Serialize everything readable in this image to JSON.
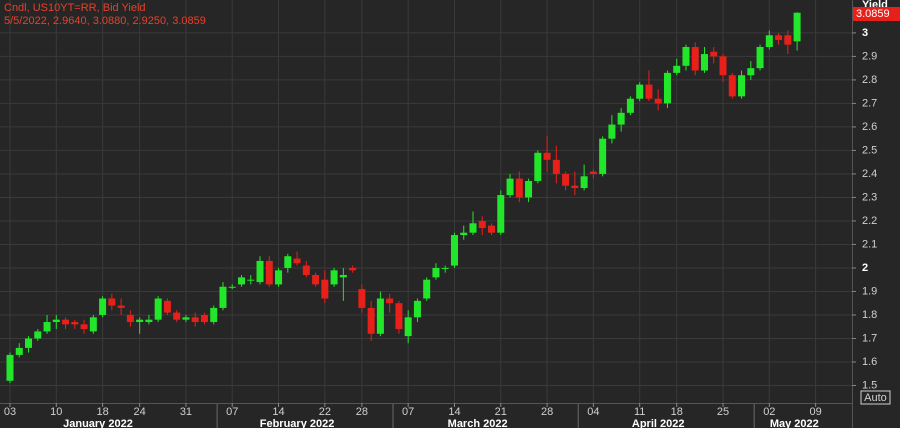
{
  "chart_data": {
    "type": "candlestick",
    "title": "Cndl, US10YT=RR, Bid Yield",
    "subtitle": "5/5/2022, 2.9640, 3.0880, 2.9250, 3.0859",
    "y_label": "Yield",
    "button": "Auto",
    "month_labels": [
      "January 2022",
      "February 2022",
      "March 2022",
      "April 2022",
      "May 2022"
    ],
    "categories": [
      "03",
      null,
      null,
      null,
      null,
      "10",
      null,
      null,
      null,
      null,
      "18",
      null,
      null,
      null,
      "24",
      null,
      null,
      null,
      null,
      "31",
      null,
      null,
      null,
      null,
      "07",
      null,
      null,
      null,
      null,
      "14",
      null,
      null,
      null,
      null,
      "22",
      null,
      null,
      null,
      "28",
      null,
      null,
      null,
      null,
      "07",
      null,
      null,
      null,
      null,
      "14",
      null,
      null,
      null,
      null,
      "21",
      null,
      null,
      null,
      null,
      "28",
      null,
      null,
      null,
      null,
      "04",
      null,
      null,
      null,
      null,
      "11",
      null,
      null,
      null,
      "18",
      null,
      null,
      null,
      null,
      "25",
      null,
      null,
      null,
      null,
      "02",
      null,
      null,
      null,
      null,
      "09",
      null,
      null,
      null
    ],
    "open": [
      1.52,
      1.63,
      1.66,
      1.7,
      1.73,
      1.77,
      1.78,
      1.77,
      1.76,
      1.73,
      1.8,
      1.87,
      1.84,
      1.8,
      1.77,
      1.77,
      1.78,
      1.86,
      1.81,
      1.78,
      1.79,
      1.8,
      1.77,
      1.83,
      1.92,
      1.93,
      1.95,
      1.94,
      2.03,
      1.93,
      2.0,
      2.04,
      2.01,
      1.97,
      1.95,
      1.93,
      1.96,
      2.0,
      1.91,
      1.83,
      1.72,
      1.87,
      1.85,
      1.71,
      1.79,
      1.87,
      1.96,
      2.0,
      2.01,
      2.14,
      2.15,
      2.2,
      2.18,
      2.15,
      2.31,
      2.38,
      2.3,
      2.37,
      2.49,
      2.46,
      2.4,
      2.35,
      2.34,
      2.41,
      2.4,
      2.55,
      2.61,
      2.66,
      2.72,
      2.78,
      2.72,
      2.7,
      2.83,
      2.86,
      2.94,
      2.84,
      2.92,
      2.9,
      2.82,
      2.73,
      2.82,
      2.85,
      2.94,
      2.99,
      2.99,
      2.964,
      null,
      null,
      null,
      null,
      null
    ],
    "high": [
      1.64,
      1.68,
      1.71,
      1.74,
      1.8,
      1.8,
      1.79,
      1.78,
      1.78,
      1.8,
      1.88,
      1.89,
      1.87,
      1.82,
      1.79,
      1.8,
      1.88,
      1.87,
      1.82,
      1.8,
      1.81,
      1.81,
      1.84,
      1.94,
      1.93,
      1.97,
      1.97,
      2.05,
      2.05,
      2.0,
      2.06,
      2.07,
      2.03,
      1.98,
      1.99,
      2.0,
      2.0,
      2.01,
      1.93,
      1.86,
      1.9,
      1.89,
      1.86,
      1.82,
      1.87,
      1.96,
      2.02,
      2.01,
      2.15,
      2.18,
      2.24,
      2.22,
      2.19,
      2.33,
      2.4,
      2.41,
      2.38,
      2.5,
      2.56,
      2.52,
      2.41,
      2.41,
      2.44,
      2.42,
      2.56,
      2.65,
      2.68,
      2.73,
      2.79,
      2.84,
      2.76,
      2.84,
      2.89,
      2.95,
      2.96,
      2.94,
      2.94,
      2.91,
      2.83,
      2.84,
      2.88,
      2.95,
      3.01,
      3.0,
      3.01,
      3.088,
      null,
      null,
      null,
      null,
      null
    ],
    "low": [
      1.51,
      1.62,
      1.64,
      1.69,
      1.72,
      1.74,
      1.74,
      1.74,
      1.72,
      1.72,
      1.79,
      1.82,
      1.8,
      1.75,
      1.72,
      1.76,
      1.77,
      1.8,
      1.77,
      1.77,
      1.75,
      1.76,
      1.76,
      1.82,
      1.91,
      1.92,
      1.93,
      1.93,
      1.92,
      1.92,
      1.98,
      2.01,
      1.96,
      1.92,
      1.85,
      1.92,
      1.86,
      1.98,
      1.81,
      1.69,
      1.71,
      1.81,
      1.72,
      1.68,
      1.77,
      1.86,
      1.95,
      1.98,
      2.0,
      2.12,
      2.14,
      2.14,
      2.14,
      2.14,
      2.3,
      2.28,
      2.28,
      2.36,
      2.41,
      2.36,
      2.33,
      2.31,
      2.33,
      2.38,
      2.39,
      2.53,
      2.58,
      2.65,
      2.71,
      2.71,
      2.67,
      2.68,
      2.82,
      2.84,
      2.82,
      2.83,
      2.87,
      2.79,
      2.72,
      2.72,
      2.8,
      2.84,
      2.93,
      2.95,
      2.91,
      2.925,
      null,
      null,
      null,
      null,
      null
    ],
    "close": [
      1.63,
      1.66,
      1.7,
      1.73,
      1.77,
      1.78,
      1.76,
      1.76,
      1.74,
      1.79,
      1.87,
      1.84,
      1.83,
      1.77,
      1.78,
      1.78,
      1.87,
      1.81,
      1.78,
      1.79,
      1.77,
      1.77,
      1.83,
      1.92,
      1.92,
      1.96,
      1.95,
      2.03,
      1.93,
      1.99,
      2.05,
      2.02,
      1.97,
      1.93,
      1.87,
      1.99,
      1.97,
      1.99,
      1.83,
      1.72,
      1.87,
      1.85,
      1.74,
      1.79,
      1.86,
      1.95,
      2.0,
      2.0,
      2.14,
      2.15,
      2.19,
      2.17,
      2.15,
      2.31,
      2.38,
      2.3,
      2.37,
      2.49,
      2.46,
      2.4,
      2.35,
      2.34,
      2.39,
      2.4,
      2.55,
      2.61,
      2.66,
      2.72,
      2.78,
      2.72,
      2.7,
      2.83,
      2.86,
      2.94,
      2.84,
      2.91,
      2.9,
      2.82,
      2.73,
      2.82,
      2.85,
      2.94,
      2.99,
      2.97,
      2.95,
      3.0859,
      null,
      null,
      null,
      null,
      null
    ],
    "up_color": "#22e62a",
    "down_color": "#e8201a",
    "ylim": [
      1.4255,
      3.14
    ],
    "yticks": [
      1.5,
      1.6,
      1.7,
      1.8,
      1.9,
      2,
      2.1,
      2.2,
      2.3,
      2.4,
      2.5,
      2.6,
      2.7,
      2.8,
      2.9,
      3
    ],
    "grid": true
  }
}
